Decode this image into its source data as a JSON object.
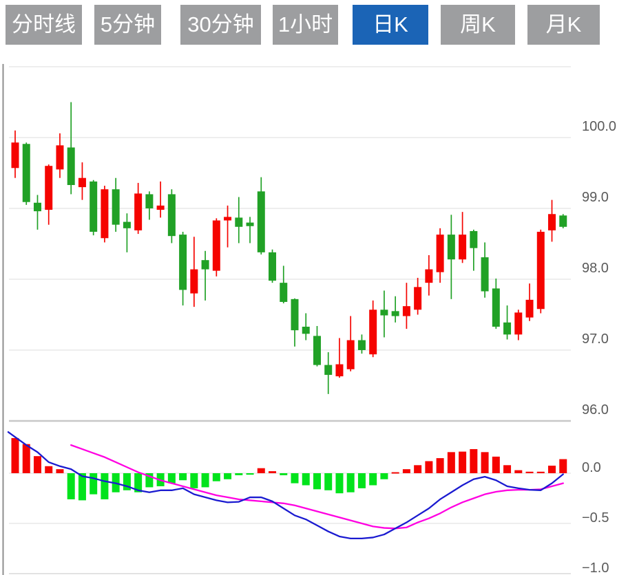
{
  "toolbar": {
    "tabs": [
      {
        "label": "分时线",
        "active": false
      },
      {
        "label": "5分钟",
        "active": false
      },
      {
        "label": "30分钟",
        "active": false
      },
      {
        "label": "1小时",
        "active": false
      },
      {
        "label": "日K",
        "active": true
      },
      {
        "label": "周K",
        "active": false
      },
      {
        "label": "月K",
        "active": false
      }
    ]
  },
  "colors": {
    "up": "#f50400",
    "down": "#21a126",
    "macd_up": "#f50400",
    "macd_down": "#02e31c",
    "dif_line": "#1a1ad0",
    "dea_line": "#ff00e1",
    "grid": "#e8e8e8",
    "grid_heavy": "#c8c8c8",
    "panel_border": "#8f8f8f",
    "axis_label": "#5a5a5a",
    "tab_bg": "#9d9ea0",
    "tab_active_bg": "#1b64b6"
  },
  "chart_data": {
    "type": "candlestick+macd",
    "title": "",
    "legend": [],
    "grid": true,
    "price_axis": {
      "side": "right",
      "ticks": [
        "100.0",
        "99.0",
        "98.0",
        "97.0",
        "96.0"
      ],
      "tick_values": [
        100.0,
        99.0,
        98.0,
        97.0,
        96.0
      ],
      "range": [
        95.8,
        101.0
      ]
    },
    "macd_axis": {
      "side": "right",
      "ticks": [
        "0.0",
        "−0.5",
        "−1.0"
      ],
      "tick_values": [
        0.0,
        -0.5,
        -1.0
      ],
      "range": [
        -1.0,
        0.5
      ]
    },
    "candles": [
      {
        "o": 99.57,
        "h": 100.1,
        "l": 99.43,
        "c": 99.93
      },
      {
        "o": 99.91,
        "h": 99.93,
        "l": 99.05,
        "c": 99.09
      },
      {
        "o": 99.08,
        "h": 99.19,
        "l": 98.7,
        "c": 98.96
      },
      {
        "o": 98.98,
        "h": 99.62,
        "l": 98.77,
        "c": 99.6
      },
      {
        "o": 99.55,
        "h": 100.06,
        "l": 99.43,
        "c": 99.89
      },
      {
        "o": 99.86,
        "h": 100.5,
        "l": 99.2,
        "c": 99.33
      },
      {
        "o": 99.3,
        "h": 99.65,
        "l": 99.12,
        "c": 99.43
      },
      {
        "o": 99.38,
        "h": 99.4,
        "l": 98.62,
        "c": 98.67
      },
      {
        "o": 98.58,
        "h": 99.32,
        "l": 98.52,
        "c": 99.27
      },
      {
        "o": 99.27,
        "h": 99.43,
        "l": 98.67,
        "c": 98.77
      },
      {
        "o": 98.81,
        "h": 98.93,
        "l": 98.38,
        "c": 98.72
      },
      {
        "o": 98.69,
        "h": 99.36,
        "l": 98.64,
        "c": 99.21
      },
      {
        "o": 99.2,
        "h": 99.24,
        "l": 98.84,
        "c": 99.0
      },
      {
        "o": 98.98,
        "h": 99.38,
        "l": 98.87,
        "c": 99.04
      },
      {
        "o": 99.2,
        "h": 99.27,
        "l": 98.51,
        "c": 98.61
      },
      {
        "o": 98.63,
        "h": 98.67,
        "l": 97.63,
        "c": 97.85
      },
      {
        "o": 97.8,
        "h": 98.6,
        "l": 97.61,
        "c": 98.14
      },
      {
        "o": 98.27,
        "h": 98.4,
        "l": 97.7,
        "c": 98.14
      },
      {
        "o": 98.12,
        "h": 98.86,
        "l": 98.04,
        "c": 98.83
      },
      {
        "o": 98.83,
        "h": 99.04,
        "l": 98.45,
        "c": 98.88
      },
      {
        "o": 98.87,
        "h": 99.16,
        "l": 98.51,
        "c": 98.74
      },
      {
        "o": 98.8,
        "h": 98.88,
        "l": 98.51,
        "c": 98.75
      },
      {
        "o": 99.24,
        "h": 99.44,
        "l": 98.35,
        "c": 98.38
      },
      {
        "o": 98.38,
        "h": 98.42,
        "l": 97.95,
        "c": 97.98
      },
      {
        "o": 97.95,
        "h": 98.19,
        "l": 97.66,
        "c": 97.68
      },
      {
        "o": 97.72,
        "h": 97.73,
        "l": 97.05,
        "c": 97.28
      },
      {
        "o": 97.33,
        "h": 97.52,
        "l": 97.14,
        "c": 97.23
      },
      {
        "o": 97.2,
        "h": 97.34,
        "l": 96.77,
        "c": 96.79
      },
      {
        "o": 96.79,
        "h": 96.97,
        "l": 96.38,
        "c": 96.65
      },
      {
        "o": 96.63,
        "h": 97.17,
        "l": 96.61,
        "c": 96.8
      },
      {
        "o": 96.73,
        "h": 97.48,
        "l": 96.7,
        "c": 97.14
      },
      {
        "o": 97.14,
        "h": 97.22,
        "l": 96.95,
        "c": 97.0
      },
      {
        "o": 96.94,
        "h": 97.7,
        "l": 96.9,
        "c": 97.57
      },
      {
        "o": 97.57,
        "h": 97.84,
        "l": 97.18,
        "c": 97.49
      },
      {
        "o": 97.55,
        "h": 97.76,
        "l": 97.39,
        "c": 97.48
      },
      {
        "o": 97.48,
        "h": 97.95,
        "l": 97.3,
        "c": 97.62
      },
      {
        "o": 97.57,
        "h": 98.02,
        "l": 97.5,
        "c": 97.89
      },
      {
        "o": 97.95,
        "h": 98.34,
        "l": 97.77,
        "c": 98.14
      },
      {
        "o": 98.1,
        "h": 98.72,
        "l": 97.95,
        "c": 98.63
      },
      {
        "o": 98.63,
        "h": 98.91,
        "l": 97.72,
        "c": 98.28
      },
      {
        "o": 98.28,
        "h": 98.95,
        "l": 98.23,
        "c": 98.63
      },
      {
        "o": 98.68,
        "h": 98.7,
        "l": 98.12,
        "c": 98.44
      },
      {
        "o": 98.31,
        "h": 98.52,
        "l": 97.74,
        "c": 97.83
      },
      {
        "o": 97.87,
        "h": 98.01,
        "l": 97.3,
        "c": 97.33
      },
      {
        "o": 97.39,
        "h": 97.63,
        "l": 97.15,
        "c": 97.22
      },
      {
        "o": 97.22,
        "h": 97.57,
        "l": 97.14,
        "c": 97.53
      },
      {
        "o": 97.46,
        "h": 97.94,
        "l": 97.41,
        "c": 97.71
      },
      {
        "o": 97.58,
        "h": 98.7,
        "l": 97.52,
        "c": 98.67
      },
      {
        "o": 98.69,
        "h": 99.12,
        "l": 98.53,
        "c": 98.92
      },
      {
        "o": 98.9,
        "h": 98.92,
        "l": 98.72,
        "c": 98.74
      }
    ],
    "macd": {
      "histogram": [
        0.35,
        0.29,
        0.17,
        0.07,
        0.04,
        -0.26,
        -0.27,
        -0.21,
        -0.26,
        -0.19,
        -0.17,
        -0.19,
        -0.14,
        -0.13,
        -0.1,
        -0.07,
        -0.15,
        -0.14,
        -0.08,
        -0.06,
        -0.02,
        -0.015,
        0.05,
        0.02,
        -0.02,
        -0.1,
        -0.12,
        -0.16,
        -0.17,
        -0.2,
        -0.19,
        -0.15,
        -0.12,
        -0.06,
        0.01,
        0.04,
        0.08,
        0.12,
        0.15,
        0.21,
        0.215,
        0.24,
        0.21,
        0.165,
        0.08,
        0.03,
        0.015,
        0.015,
        0.075,
        0.14
      ],
      "dif": [
        0.36,
        0.28,
        0.21,
        0.11,
        0.07,
        0.04,
        -0.03,
        -0.05,
        -0.08,
        -0.1,
        -0.13,
        -0.17,
        -0.19,
        -0.17,
        -0.17,
        -0.15,
        -0.21,
        -0.24,
        -0.27,
        -0.29,
        -0.285,
        -0.24,
        -0.24,
        -0.28,
        -0.35,
        -0.42,
        -0.46,
        -0.52,
        -0.58,
        -0.63,
        -0.65,
        -0.65,
        -0.64,
        -0.61,
        -0.55,
        -0.49,
        -0.42,
        -0.35,
        -0.26,
        -0.19,
        -0.12,
        -0.06,
        -0.035,
        -0.07,
        -0.13,
        -0.15,
        -0.165,
        -0.17,
        -0.1,
        -0.01
      ],
      "dif_start_value": 0.41,
      "dea_start_index": 5,
      "dea": [
        0.28,
        0.24,
        0.2,
        0.16,
        0.11,
        0.06,
        0.01,
        -0.03,
        -0.07,
        -0.1,
        -0.13,
        -0.16,
        -0.19,
        -0.22,
        -0.24,
        -0.26,
        -0.27,
        -0.28,
        -0.29,
        -0.3,
        -0.32,
        -0.35,
        -0.38,
        -0.41,
        -0.44,
        -0.47,
        -0.5,
        -0.53,
        -0.545,
        -0.55,
        -0.54,
        -0.49,
        -0.45,
        -0.4,
        -0.34,
        -0.29,
        -0.25,
        -0.21,
        -0.185,
        -0.17,
        -0.165,
        -0.165,
        -0.16,
        -0.13,
        -0.1
      ]
    }
  }
}
